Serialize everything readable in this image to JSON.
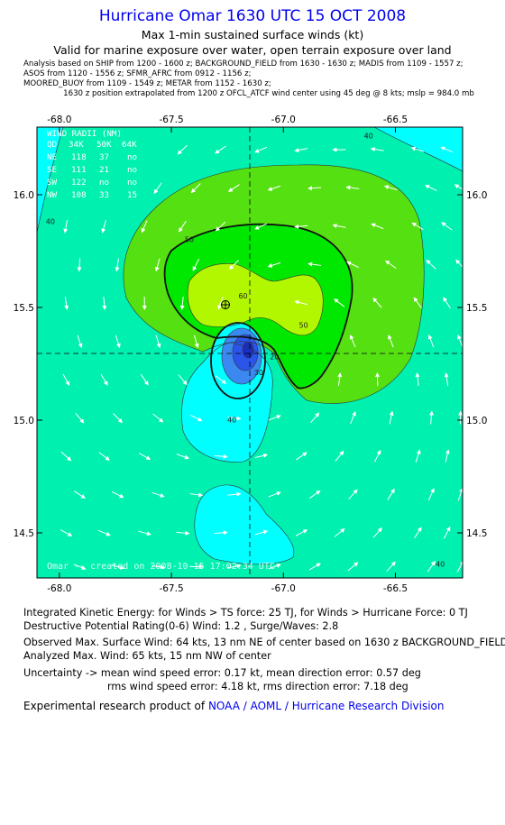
{
  "header": {
    "title": "Hurricane Omar 1630 UTC 15 OCT 2008",
    "subtitle1": "Max 1-min sustained surface winds (kt)",
    "subtitle2": "Valid for marine exposure over water, open terrain exposure over land"
  },
  "analysis_notes": [
    "Analysis based on  SHIP from 1200 - 1600 z;  BACKGROUND_FIELD from 1630 - 1630 z;  MADIS from 1109 - 1557 z;",
    "ASOS from 1120 - 1556 z;  SFMR_AFRC from 0912 - 1156 z;",
    "MOORED_BUOY from 1109 - 1549 z;  METAR from 1152 - 1630 z;",
    "1630 z position extrapolated from 1200 z OFCL_ATCF wind center using 45 deg @ 8 kts; mslp = 984.0 mb"
  ],
  "wind_radii": {
    "title": "WIND RADII (NM)",
    "rows": [
      [
        "QD",
        "34K",
        "50K",
        "64K"
      ],
      [
        "NE",
        "118",
        "37",
        "no"
      ],
      [
        "SE",
        "111",
        "21",
        "no"
      ],
      [
        "SW",
        "122",
        "no",
        "no"
      ],
      [
        "NW",
        "108",
        "33",
        "15"
      ]
    ]
  },
  "watermark": "Omar -- created on 2008-10-15 17:02:34 UTC",
  "colors": {
    "c_lt30": "#2a55e8",
    "c_30_40": "#00ffff",
    "c_40_50": "#00f0b0",
    "c_50_64": "#55e011",
    "c_64_80": "#00e800",
    "c_inner": "#b2f700",
    "title_blue": "#0000ee"
  },
  "chart_data": {
    "type": "contour",
    "xlim": [
      -68.1,
      -66.2
    ],
    "ylim": [
      14.3,
      16.3
    ],
    "x_ticks": [
      "-68.0",
      "-67.5",
      "-67.0",
      "-66.5"
    ],
    "y_ticks": [
      "14.5",
      "15.0",
      "15.5",
      "16.0"
    ],
    "storm_center": {
      "lon": -67.05,
      "lat": 15.33
    },
    "max_wind_marker": {
      "lon": -67.08,
      "lat": 15.54
    },
    "contour_labels": [
      {
        "text": "40",
        "lon": -66.62,
        "lat": 16.25
      },
      {
        "text": "40",
        "lon": -68.04,
        "lat": 15.87
      },
      {
        "text": "50",
        "lon": -67.42,
        "lat": 15.79
      },
      {
        "text": "60",
        "lon": -67.18,
        "lat": 15.54
      },
      {
        "text": "50",
        "lon": -66.91,
        "lat": 15.41
      },
      {
        "text": "20",
        "lon": -67.04,
        "lat": 15.27
      },
      {
        "text": "30",
        "lon": -67.11,
        "lat": 15.2
      },
      {
        "text": "40",
        "lon": -67.23,
        "lat": 14.99
      },
      {
        "text": "40",
        "lon": -66.3,
        "lat": 14.35
      }
    ],
    "wind_field": {
      "lon": [
        -67.97,
        -67.8,
        -67.62,
        -67.45,
        -67.28,
        -67.1,
        -66.92,
        -66.75,
        -66.58,
        -66.4,
        -66.27
      ],
      "lat": [
        16.2,
        16.03,
        15.86,
        15.69,
        15.52,
        15.35,
        15.18,
        15.01,
        14.84,
        14.67,
        14.5,
        14.35
      ]
    }
  },
  "footer": {
    "line1": "Integrated Kinetic Energy:  for Winds > TS force: 25 TJ,  for Winds > Hurricane Force: 0 TJ",
    "line2": "Destructive Potential Rating(0-6)   Wind: 1.2 , Surge/Waves: 2.8",
    "line3": "Observed Max. Surface Wind: 64 kts, 13 nm NE of center based on 1630 z BACKGROUND_FIELD",
    "line4": "Analyzed Max. Wind: 65 kts, 15 nm NW of center",
    "line5": "Uncertainty -> mean wind speed error: 0.17 kt,   mean direction error: 0.57 deg",
    "line6": "rms wind speed error: 4.18 kt,   rms direction error: 7.18 deg",
    "credit_prefix": "Experimental research product of",
    "credit_link": "NOAA / AOML / Hurricane Research Division"
  }
}
